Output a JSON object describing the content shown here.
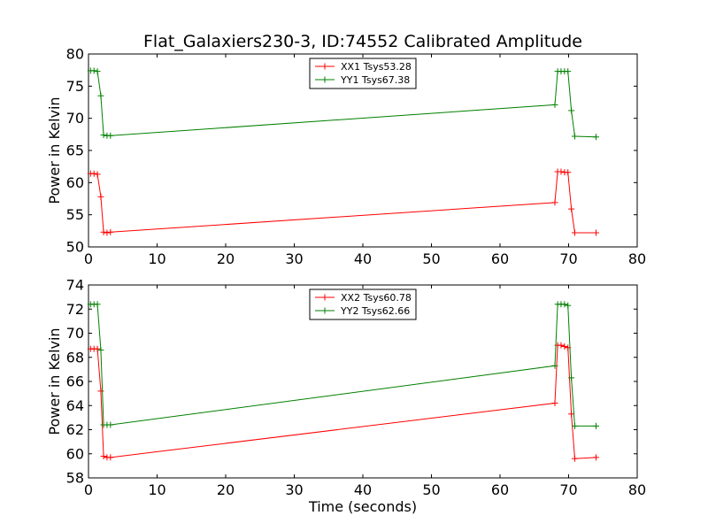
{
  "chart_data": [
    {
      "type": "line",
      "title": "Flat_Galaxiers230-3, ID:74552 Calibrated Amplitude",
      "xlabel": "",
      "ylabel": "Power in Kelvin",
      "xlim": [
        0,
        80
      ],
      "ylim": [
        50,
        80
      ],
      "xticks": [
        "0",
        "10",
        "20",
        "30",
        "40",
        "50",
        "60",
        "70",
        "80"
      ],
      "yticks": [
        "50",
        "55",
        "60",
        "65",
        "70",
        "75",
        "80"
      ],
      "grid": false,
      "legend_position": "top-center",
      "x": [
        0.3,
        0.8,
        1.3,
        1.8,
        2.2,
        2.7,
        3.2,
        68.0,
        68.4,
        68.9,
        69.4,
        69.9,
        70.4,
        70.9,
        74.0
      ],
      "series": [
        {
          "name": "XX1 Tsys53.28",
          "color": "#ff0000",
          "values": [
            61.4,
            61.4,
            61.3,
            57.8,
            52.3,
            52.2,
            52.3,
            56.9,
            61.7,
            61.7,
            61.6,
            61.6,
            55.9,
            52.2,
            52.2
          ]
        },
        {
          "name": "YY1 Tsys67.38",
          "color": "#008000",
          "values": [
            77.4,
            77.4,
            77.3,
            73.5,
            67.4,
            67.3,
            67.3,
            72.1,
            77.3,
            77.3,
            77.3,
            77.3,
            71.2,
            67.2,
            67.1
          ]
        }
      ]
    },
    {
      "type": "line",
      "xlabel": "Time (seconds)",
      "ylabel": "Power in Kelvin",
      "xlim": [
        0,
        80
      ],
      "ylim": [
        58,
        74
      ],
      "xticks": [
        "0",
        "10",
        "20",
        "30",
        "40",
        "50",
        "60",
        "70",
        "80"
      ],
      "yticks": [
        "58",
        "60",
        "62",
        "64",
        "66",
        "68",
        "70",
        "72",
        "74"
      ],
      "grid": false,
      "legend_position": "top-center",
      "x": [
        0.3,
        0.8,
        1.3,
        1.8,
        2.2,
        2.7,
        3.2,
        68.0,
        68.4,
        68.9,
        69.4,
        69.9,
        70.4,
        70.9,
        74.0
      ],
      "series": [
        {
          "name": "XX2 Tsys60.78",
          "color": "#ff0000",
          "values": [
            68.7,
            68.7,
            68.7,
            65.2,
            59.8,
            59.7,
            59.7,
            64.2,
            69.0,
            69.0,
            68.9,
            68.8,
            63.3,
            59.6,
            59.7
          ]
        },
        {
          "name": "YY2 Tsys62.66",
          "color": "#008000",
          "values": [
            72.4,
            72.4,
            72.4,
            68.6,
            62.4,
            62.4,
            62.4,
            67.3,
            72.4,
            72.4,
            72.4,
            72.3,
            66.3,
            62.3,
            62.3
          ]
        }
      ]
    }
  ]
}
